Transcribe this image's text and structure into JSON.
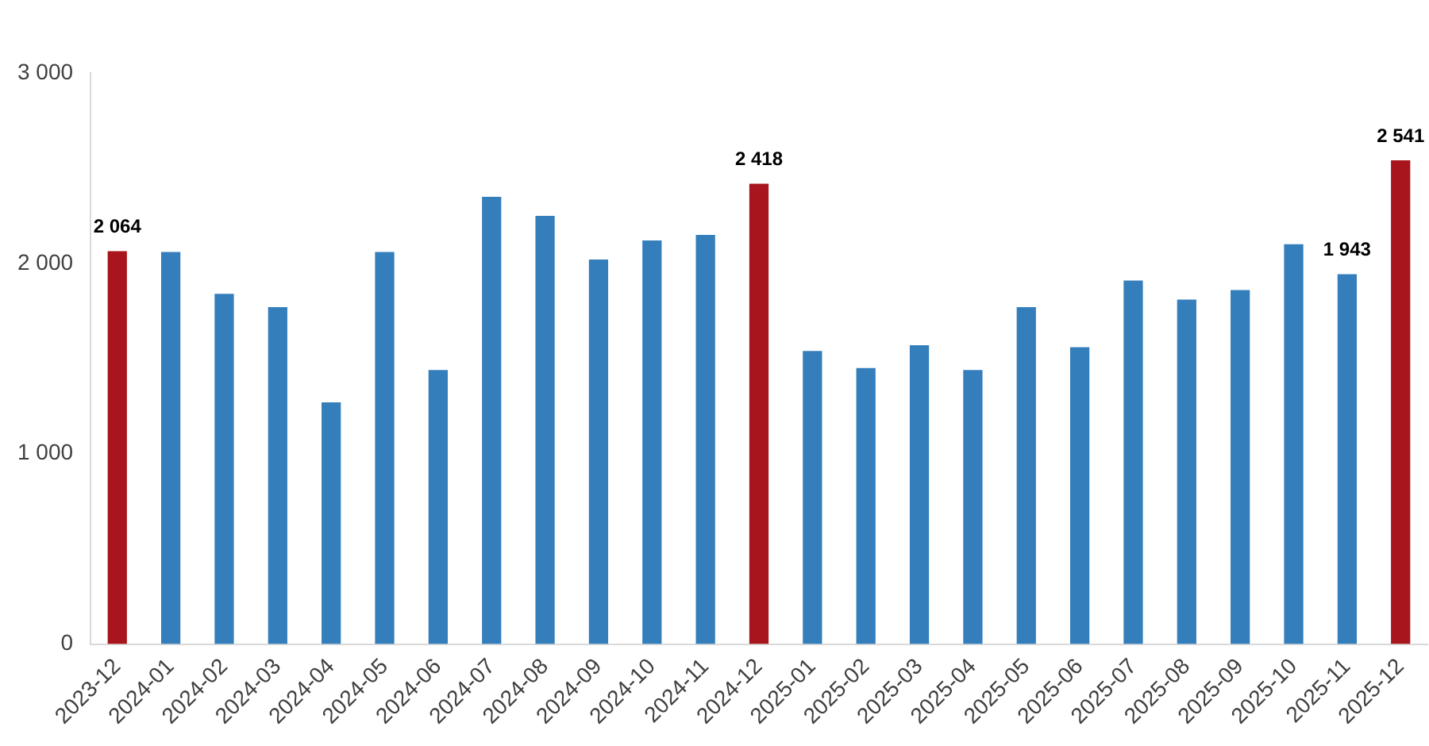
{
  "chart_data": {
    "type": "bar",
    "categories": [
      "2023-12",
      "2024-01",
      "2024-02",
      "2024-03",
      "2024-04",
      "2024-05",
      "2024-06",
      "2024-07",
      "2024-08",
      "2024-09",
      "2024-10",
      "2024-11",
      "2024-12",
      "2025-01",
      "2025-02",
      "2025-03",
      "2025-04",
      "2025-05",
      "2025-06",
      "2025-07",
      "2025-08",
      "2025-09",
      "2025-10",
      "2025-11",
      "2025-12"
    ],
    "values": [
      2064,
      2060,
      1840,
      1770,
      1270,
      2060,
      1440,
      2350,
      2250,
      2020,
      2120,
      2150,
      2418,
      1540,
      1450,
      1570,
      1440,
      1770,
      1560,
      1910,
      1810,
      1860,
      2100,
      1943,
      2541
    ],
    "colors": [
      "#a8151c",
      "#337ebb",
      "#337ebb",
      "#337ebb",
      "#337ebb",
      "#337ebb",
      "#337ebb",
      "#337ebb",
      "#337ebb",
      "#337ebb",
      "#337ebb",
      "#337ebb",
      "#a8151c",
      "#337ebb",
      "#337ebb",
      "#337ebb",
      "#337ebb",
      "#337ebb",
      "#337ebb",
      "#337ebb",
      "#337ebb",
      "#337ebb",
      "#337ebb",
      "#337ebb",
      "#a8151c"
    ],
    "value_labels": [
      "2 064",
      null,
      null,
      null,
      null,
      null,
      null,
      null,
      null,
      null,
      null,
      null,
      "2 418",
      null,
      null,
      null,
      null,
      null,
      null,
      null,
      null,
      null,
      null,
      "1 943",
      "2 541"
    ],
    "ylim": [
      0,
      3000
    ],
    "yticks": [
      0,
      {
        "value": 1000,
        "label": "1 000"
      },
      {
        "value": 2000,
        "label": "2 000"
      },
      {
        "value": 3000,
        "label": "3 000"
      }
    ],
    "grid": false,
    "legend": false
  }
}
